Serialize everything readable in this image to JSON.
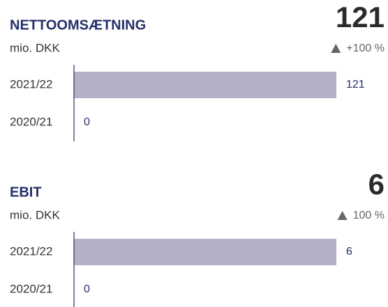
{
  "chart_data": [
    {
      "type": "bar",
      "orientation": "horizontal",
      "title": "NETTOOMSÆTNING",
      "subtitle": "mio. DKK",
      "headline": 121,
      "change": "+100 %",
      "categories": [
        "2021/22",
        "2020/21"
      ],
      "values": [
        121,
        0
      ],
      "color": "#b3b1c7",
      "xlim": [
        0,
        121
      ]
    },
    {
      "type": "bar",
      "orientation": "horizontal",
      "title": "EBIT",
      "subtitle": "mio. DKK",
      "headline": 6,
      "change": "100 %",
      "categories": [
        "2021/22",
        "2020/21"
      ],
      "values": [
        6,
        0
      ],
      "color": "#b3b1c7",
      "xlim": [
        0,
        6
      ]
    }
  ]
}
